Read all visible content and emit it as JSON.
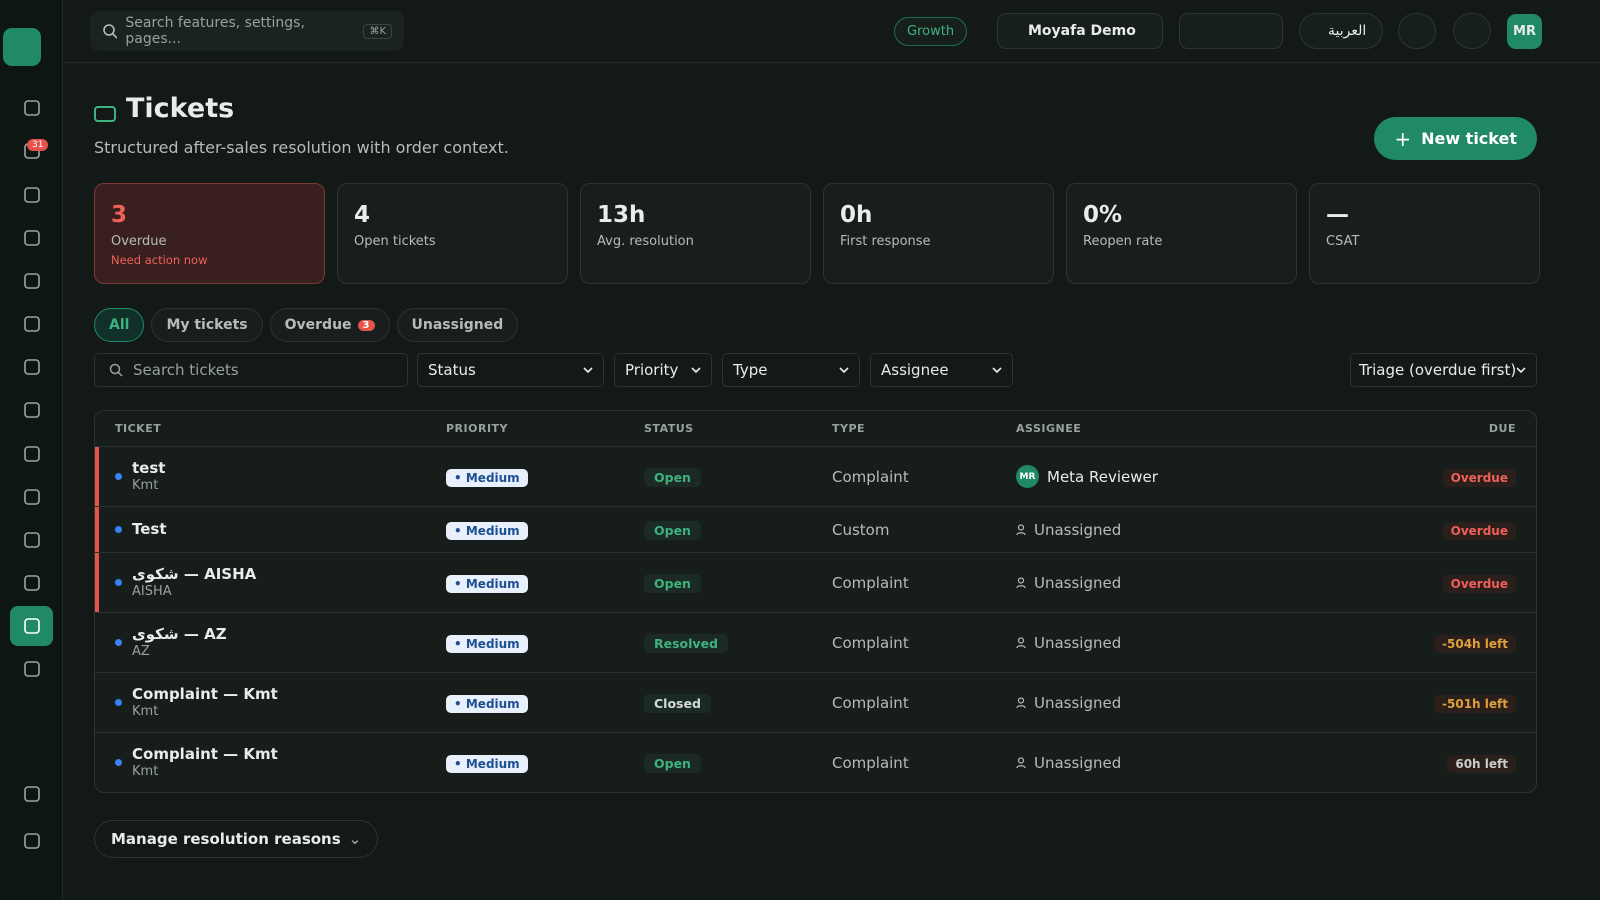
{
  "topbar": {
    "search_placeholder": "Search features, settings, pages...",
    "search_shortcut": "⌘K",
    "plan": "Growth",
    "workspace": "Moyafa Demo",
    "language": "العربية",
    "avatar": "MR"
  },
  "sidebar": {
    "badge": "31"
  },
  "header": {
    "title": "Tickets",
    "subtitle": "Structured after-sales resolution with order context.",
    "new_button": "New ticket"
  },
  "stats": [
    {
      "value": "3",
      "label": "Overdue",
      "note": "Need action now",
      "color": "#f0605a"
    },
    {
      "value": "4",
      "label": "Open tickets"
    },
    {
      "value": "13h",
      "label": "Avg. resolution"
    },
    {
      "value": "0h",
      "label": "First response"
    },
    {
      "value": "0%",
      "label": "Reopen rate"
    },
    {
      "value": "—",
      "label": "CSAT"
    }
  ],
  "tabs": [
    {
      "label": "All"
    },
    {
      "label": "My tickets"
    },
    {
      "label": "Overdue",
      "count": "3"
    },
    {
      "label": "Unassigned"
    }
  ],
  "filters": {
    "search_placeholder": "Search tickets",
    "selects": [
      "Status",
      "Priority",
      "Type",
      "Assignee"
    ],
    "sort": "Triage (overdue first)"
  },
  "table": {
    "columns": [
      "TICKET",
      "PRIORITY",
      "STATUS",
      "TYPE",
      "ASSIGNEE",
      "DUE"
    ],
    "rows": [
      {
        "title": "test",
        "subtitle": "Kmt",
        "priority": "Medium",
        "status": "Open",
        "status_color": "#3fb37f",
        "type": "Complaint",
        "assignee_initials": "MR",
        "assignee": "Meta Reviewer",
        "due": "Overdue",
        "due_color": "#f0605a",
        "accent_color": "#e5534b"
      },
      {
        "title": "Test",
        "priority": "Medium",
        "status": "Open",
        "status_color": "#3fb37f",
        "type": "Custom",
        "assignee": "Unassigned",
        "due": "Overdue",
        "due_color": "#f0605a",
        "accent_color": "#e5534b"
      },
      {
        "title": "شكوى — AISHA",
        "subtitle": "AISHA",
        "priority": "Medium",
        "status": "Open",
        "status_color": "#3fb37f",
        "type": "Complaint",
        "assignee": "Unassigned",
        "due": "Overdue",
        "due_color": "#f0605a",
        "accent_color": "#e5534b"
      },
      {
        "title": "شكوى — AZ",
        "subtitle": "AZ",
        "priority": "Medium",
        "status": "Resolved",
        "status_color": "#3fb37f",
        "type": "Complaint",
        "assignee": "Unassigned",
        "due": "-504h left",
        "due_color": "#e0a13a"
      },
      {
        "title": "Complaint — Kmt",
        "subtitle": "Kmt",
        "priority": "Medium",
        "status": "Closed",
        "status_color": "#d6dad8",
        "type": "Complaint",
        "assignee": "Unassigned",
        "due": "-501h left",
        "due_color": "#e0a13a"
      },
      {
        "title": "Complaint — Kmt",
        "subtitle": "Kmt",
        "priority": "Medium",
        "status": "Open",
        "status_color": "#3fb37f",
        "type": "Complaint",
        "assignee": "Unassigned",
        "due": "60h left",
        "due_color": "#c9cecc"
      }
    ]
  },
  "footer": {
    "manage_button": "Manage resolution reasons"
  }
}
